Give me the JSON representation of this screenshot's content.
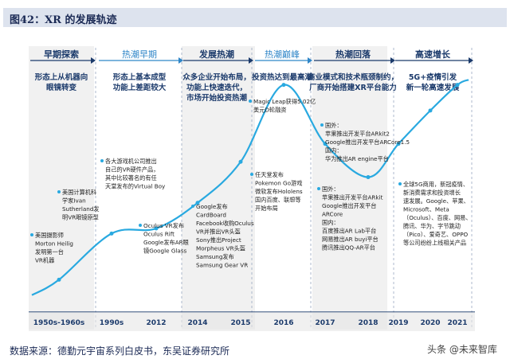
{
  "title": "图42：XR 的发展轨迹",
  "source": "数据来源：德勤元宇宙系列白皮书，东吴证券研究所",
  "watermark": "头条 @未来智库",
  "colors": {
    "curve": "#29a9e0",
    "phase": "#1b3a6b",
    "alt_phase": "#2f86c8",
    "shade": "#e6e6e6",
    "title_bg": "#dde3ee",
    "axis": "#1b3a6b"
  },
  "chart_data": {
    "type": "line",
    "x": [
      "1950s-1960s",
      "1990s",
      "2012",
      "2014",
      "2015",
      "2016",
      "2017",
      "2018",
      "2019",
      "2020",
      "2021"
    ],
    "series": [
      {
        "values": [
          0.12,
          0.3,
          0.32,
          0.42,
          0.58,
          0.88,
          0.65,
          0.52,
          0.65,
          0.78,
          0.88
        ]
      }
    ],
    "phases": [
      {
        "label": "早期探索",
        "desc": "形态上从机器向\n眼镜转变",
        "style": "dark"
      },
      {
        "label": "热潮早期",
        "desc": "形态上基本成型\n功能上差距较大",
        "style": "light"
      },
      {
        "label": "发展热潮",
        "desc": "众多企业开始布局，\n功能上快速迭代，\n市场开始投资热潮",
        "style": "dark"
      },
      {
        "label": "热潮巅峰",
        "desc": "投资热达到最高潮",
        "style": "light"
      },
      {
        "label": "热潮回落",
        "desc": "商业模式和技术瓶颈制约，\n厂商开始搭建XR平台能力",
        "style": "dark"
      },
      {
        "label": "高速增长",
        "desc": "5G+疫情引发\n新一轮高速发展",
        "style": "dark"
      }
    ],
    "annotations": [
      "美国摄影师\nMorton Heilig\n发明第一台\nVR机器",
      "美国计算机科\n学家Ivan\nSutherland发\n明VR眼镜原型",
      "各大游戏机公司推出\n自己的VR硬件产品，\n其中比较著名的有任\n天堂发布的Virtual Boy",
      "Oculus VR发布\nOculus Rift\nGoogle发布AR眼\n镜Google Glass",
      "Google发布\nCardBoard\nFacebook收购Oculus\nVR并推出VR头盔\nSony推出Project\nMorpheus VR头盔\nSamsung发布\nSamsung Gear VR",
      "Magic Leap获得5.02亿\n美元D轮融资",
      "任天堂发布\nPokemon Go游戏\n微软发布Hololens\n国内百度、联想等\n开始布局",
      "国外：\n苹果推出开发平台ARkit2\nGoogle推出开发平台ARCore1.5\n国内：\n华为推出AR engine平台",
      "国外：\n苹果推出开发平台ARkit\nGoogle推出开发平台\nARCore\n国内：\n百度推出AR Lab平台\n网易推出AR buyi平台\n腾讯推出QQ-AR平台",
      "全球5G商用，新冠疫情、\n新消费需求和投资增长\n速发展。Google、苹果、\nMicrosoft、Meta\n（Oculus）、百度、网易、\n腾讯、华为、字节跳动\n（Pico）、爱奇艺、OPPO\n等公司纷纷上线相关产品"
    ]
  }
}
